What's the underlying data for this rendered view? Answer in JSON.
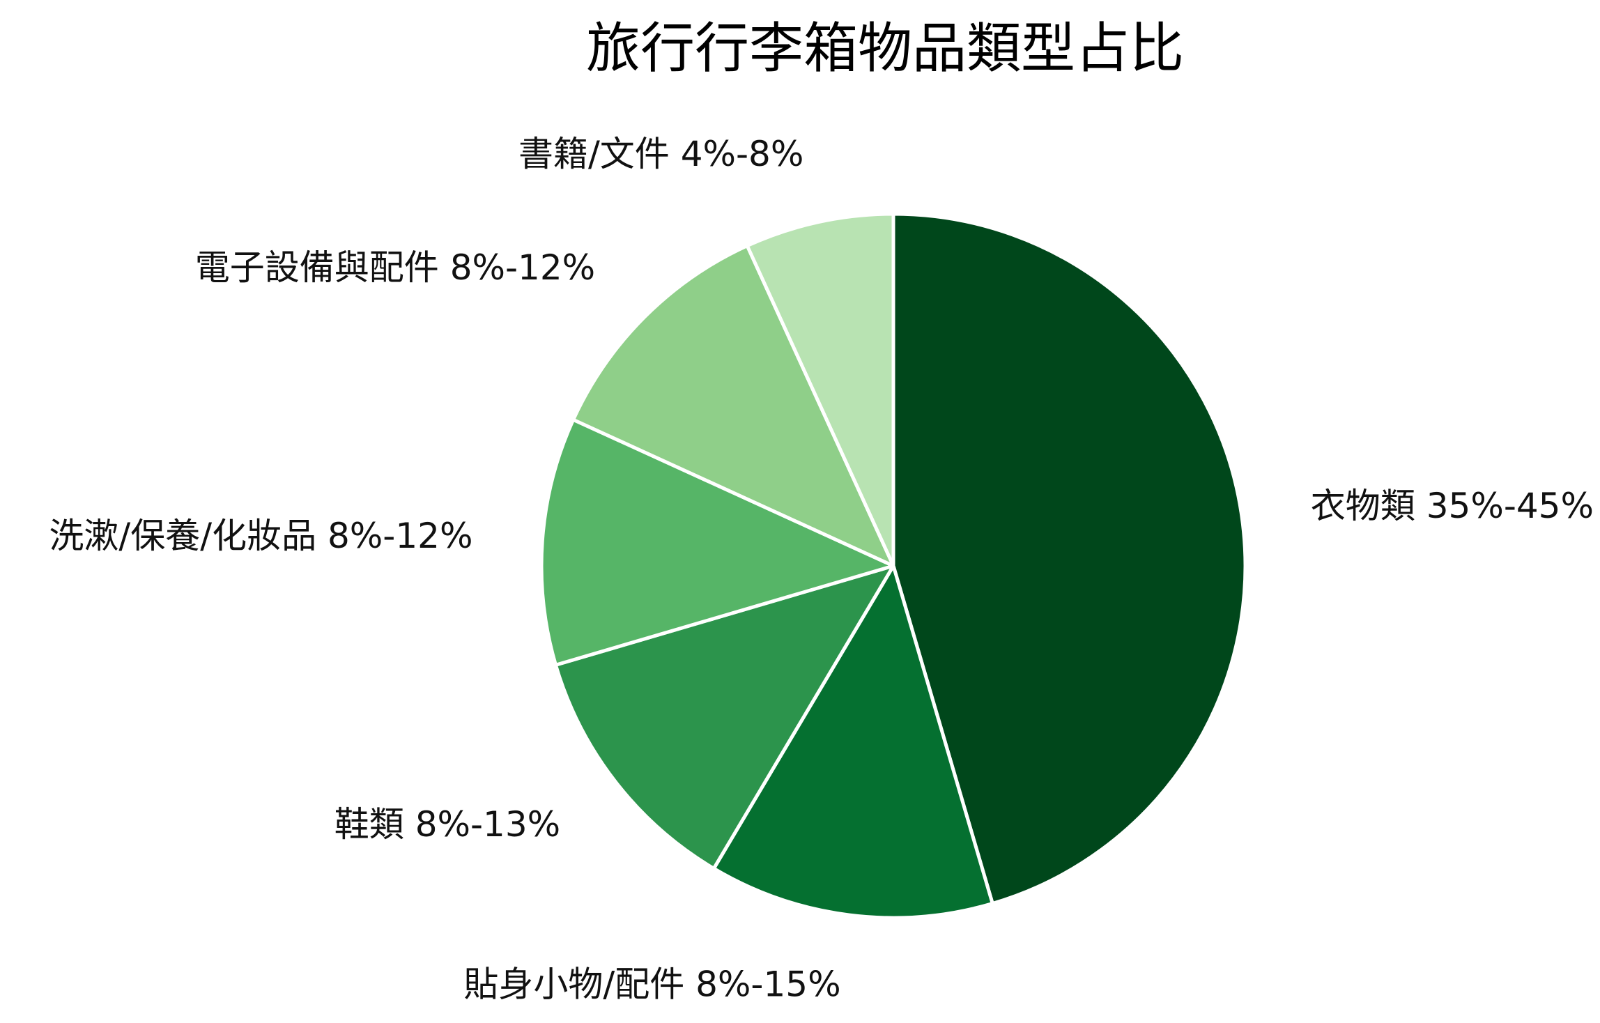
{
  "chart_data": {
    "type": "pie",
    "title": "旅行行李箱物品類型占比",
    "start_angle_deg": 0,
    "direction": "clockwise",
    "slices": [
      {
        "label": "衣物類 35%-45%",
        "value": 40,
        "color": "#00471b"
      },
      {
        "label": "貼身小物/配件 8%-15%",
        "value": 11.5,
        "color": "#057030"
      },
      {
        "label": "鞋類 8%-13%",
        "value": 10.5,
        "color": "#2c944c"
      },
      {
        "label": "洗漱/保養/化妝品 8%-12%",
        "value": 10,
        "color": "#56b567"
      },
      {
        "label": "電子設備與配件 8%-12%",
        "value": 10,
        "color": "#8fcf89"
      },
      {
        "label": "書籍/文件 4%-8%",
        "value": 6,
        "color": "#b8e3b2"
      }
    ],
    "slice_border_color": "#ffffff"
  }
}
